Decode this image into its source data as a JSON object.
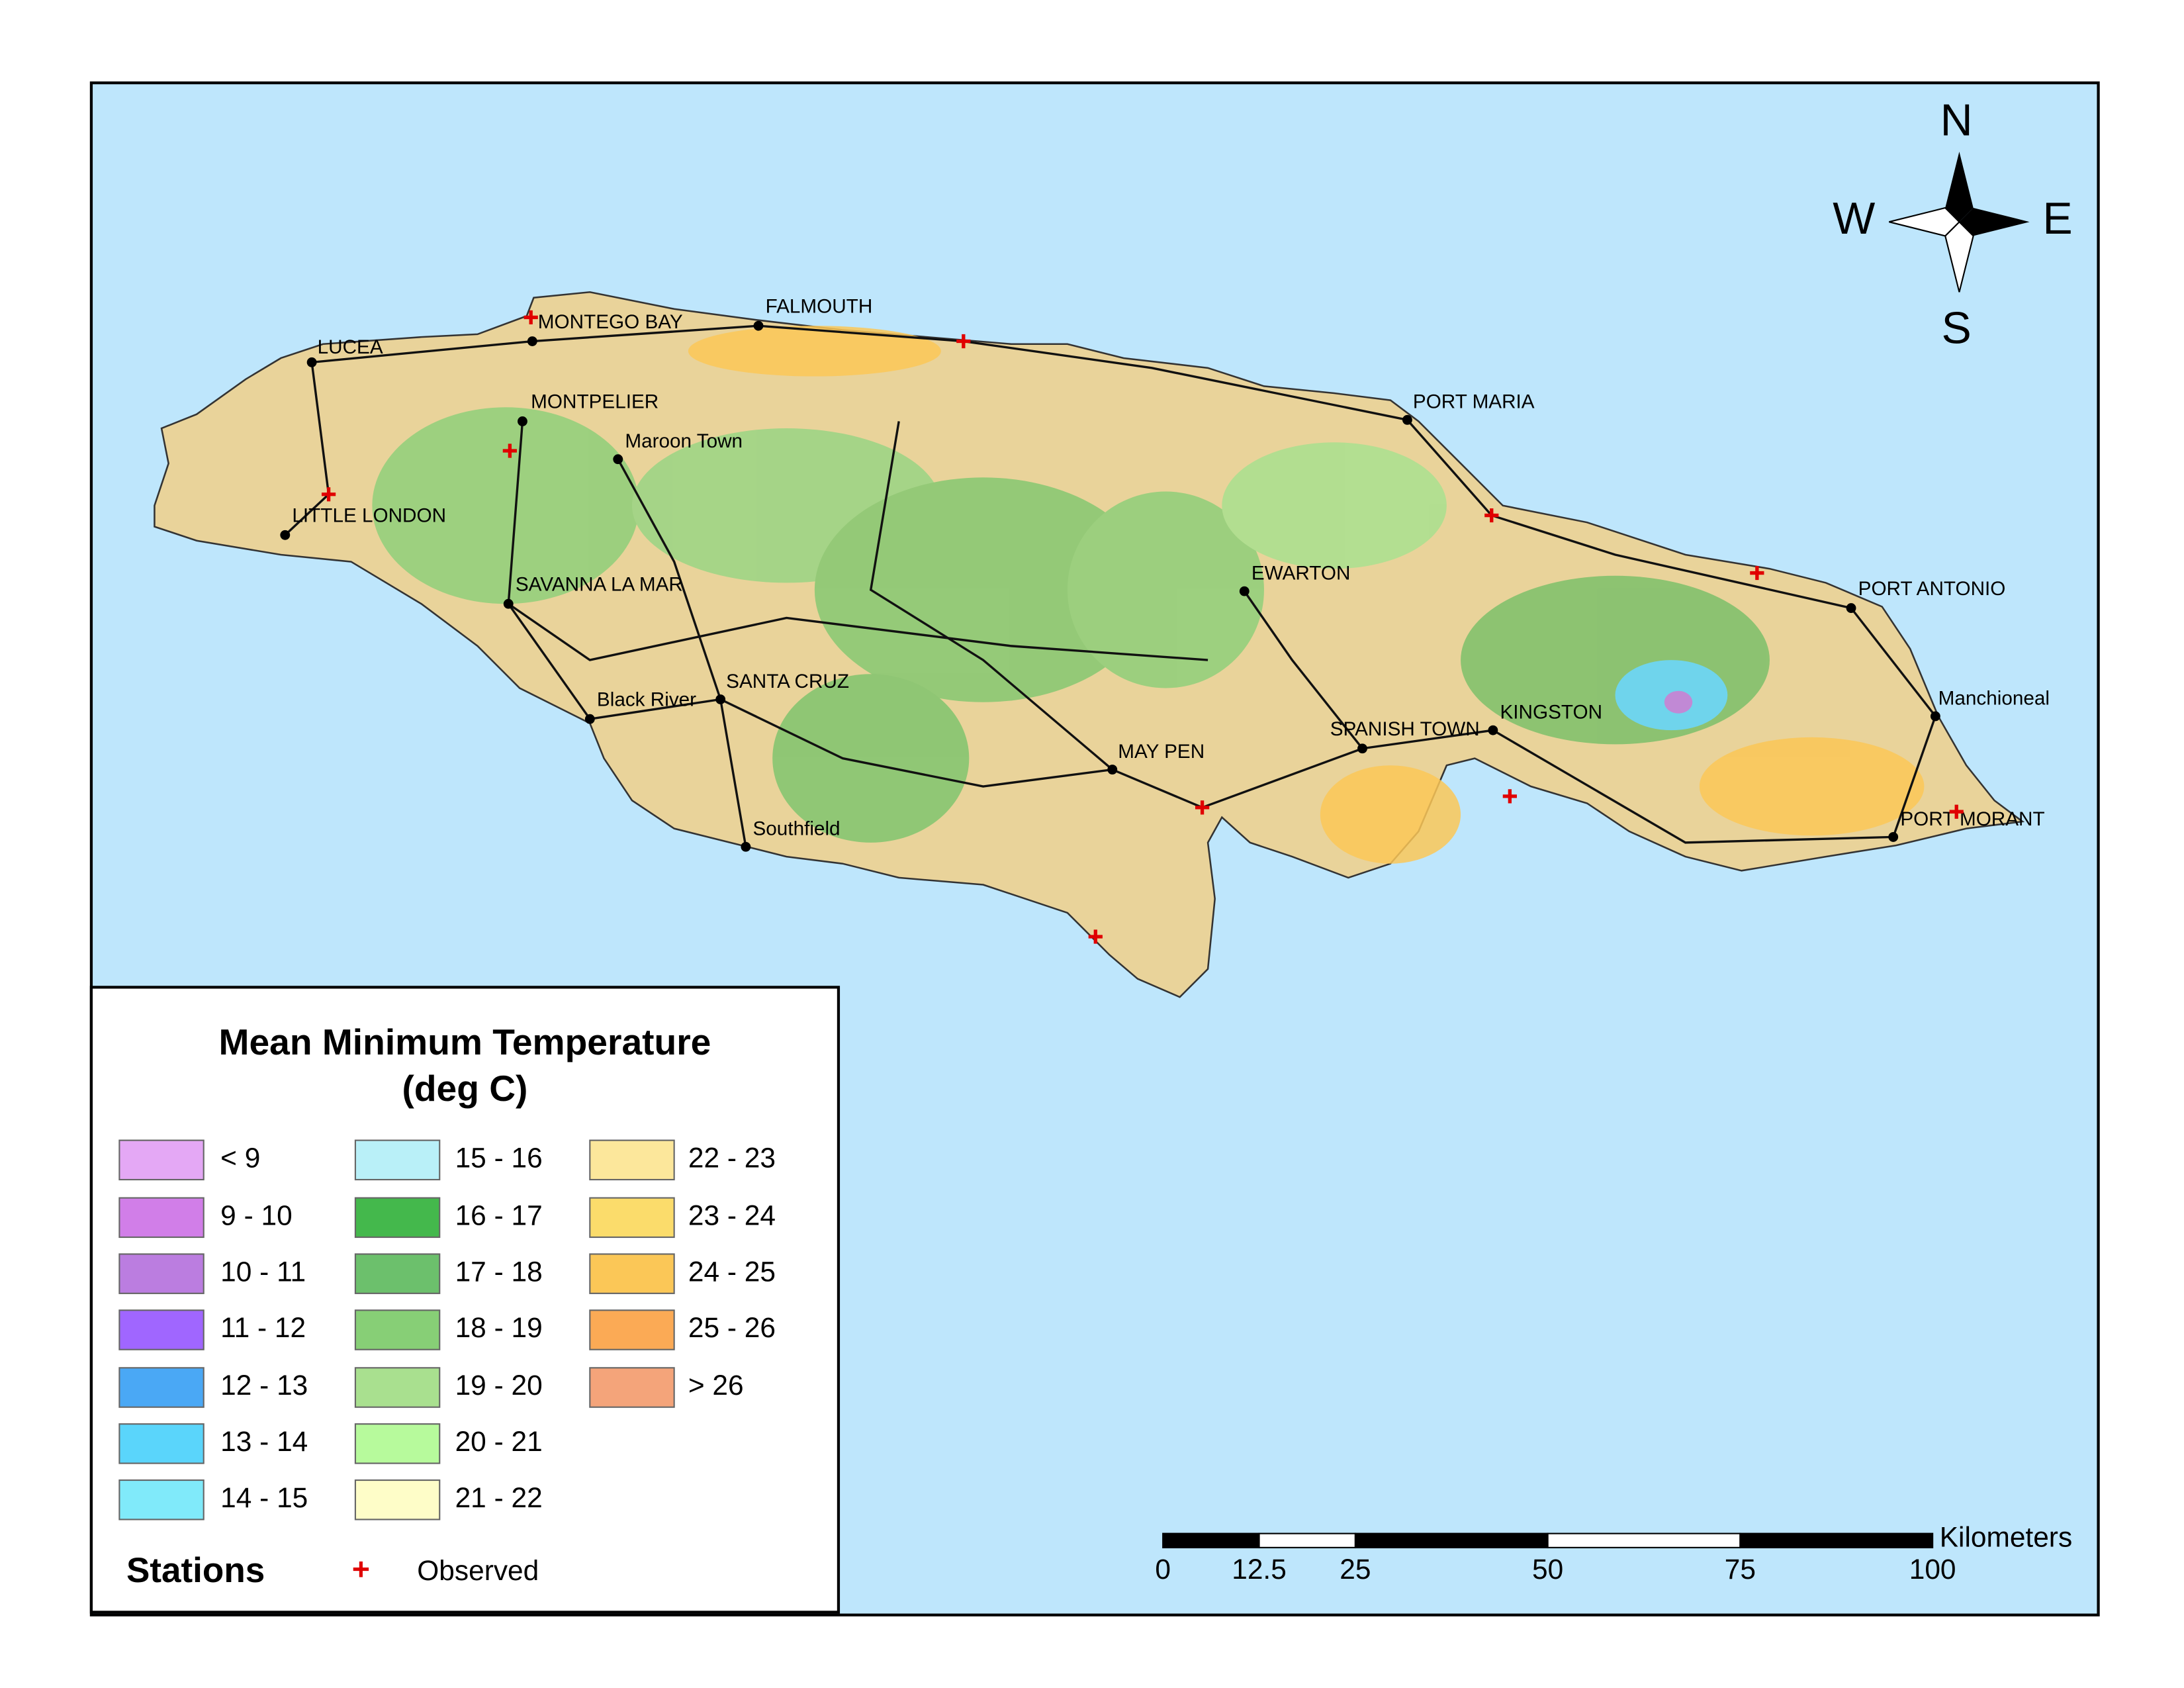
{
  "legend": {
    "title": [
      "Mean Minimum Temperature",
      "(deg C)"
    ],
    "items": [
      {
        "label": "< 9",
        "color": "#e4a8f5"
      },
      {
        "label": "9 - 10",
        "color": "#d17ee8"
      },
      {
        "label": "10 - 11",
        "color": "#bb7de0"
      },
      {
        "label": "11 - 12",
        "color": "#a066ff"
      },
      {
        "label": "12 - 13",
        "color": "#4aa8f5"
      },
      {
        "label": "13 - 14",
        "color": "#5ad5fb"
      },
      {
        "label": "14 - 15",
        "color": "#80eafa"
      },
      {
        "label": "15 - 16",
        "color": "#b9f0f8"
      },
      {
        "label": "16 - 17",
        "color": "#44b84c"
      },
      {
        "label": "17 - 18",
        "color": "#6cc06c"
      },
      {
        "label": "18 - 19",
        "color": "#87cf76"
      },
      {
        "label": "19 - 20",
        "color": "#a9e08f"
      },
      {
        "label": "20 - 21",
        "color": "#b7fa9c"
      },
      {
        "label": "21 - 22",
        "color": "#fefdc8"
      },
      {
        "label": "22 - 23",
        "color": "#fce79b"
      },
      {
        "label": "23 - 24",
        "color": "#fbdc6b"
      },
      {
        "label": "24 - 25",
        "color": "#fbc757"
      },
      {
        "label": "25 - 26",
        "color": "#fbaa55"
      },
      {
        "label": "> 26",
        "color": "#f4a47a"
      }
    ],
    "stations_title": "Stations",
    "observed": "Observed"
  },
  "compass": {
    "n": "N",
    "w": "W",
    "e": "E",
    "s": "S"
  },
  "towns": [
    "LUCEA",
    "MONTEGO BAY",
    "FALMOUTH",
    "MONTPELIER",
    "Maroon Town",
    "LITTLE LONDON",
    "SAVANNA LA MAR",
    "PORT MARIA",
    "EWARTON",
    "PORT ANTONIO",
    "Manchioneal",
    "KINGSTON",
    "SPANISH TOWN",
    "MAY PEN",
    "SANTA CRUZ",
    "Black River",
    "Southfield",
    "PORT MORANT"
  ],
  "scale_bar": {
    "unit": "Kilometers",
    "ticks": [
      0,
      12.5,
      25,
      50,
      75,
      100
    ]
  }
}
